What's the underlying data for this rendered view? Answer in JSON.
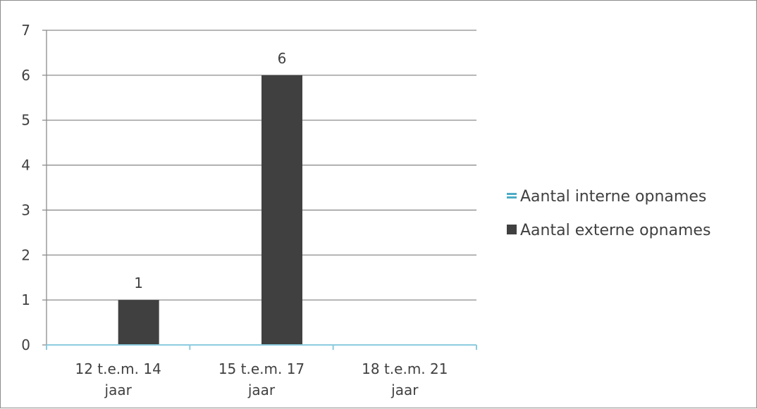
{
  "chart_data": {
    "type": "bar",
    "categories": [
      [
        "12 t.e.m. 14",
        "jaar"
      ],
      [
        "15 t.e.m. 17",
        "jaar"
      ],
      [
        "18 t.e.m. 21",
        "jaar"
      ]
    ],
    "series": [
      {
        "name": "Aantal interne opnames",
        "values": [
          0,
          0,
          0
        ],
        "color": "#4bacc6",
        "show_labels": false
      },
      {
        "name": "Aantal externe opnames",
        "values": [
          1,
          6,
          0
        ],
        "color": "#404040",
        "show_labels": true
      }
    ],
    "ylim": [
      0,
      7
    ],
    "yticks": [
      0,
      1,
      2,
      3,
      4,
      5,
      6,
      7
    ],
    "grid": true,
    "legend_position": "right",
    "axis_color": "#8ccbe0",
    "grid_color": "#8c8c8c"
  }
}
